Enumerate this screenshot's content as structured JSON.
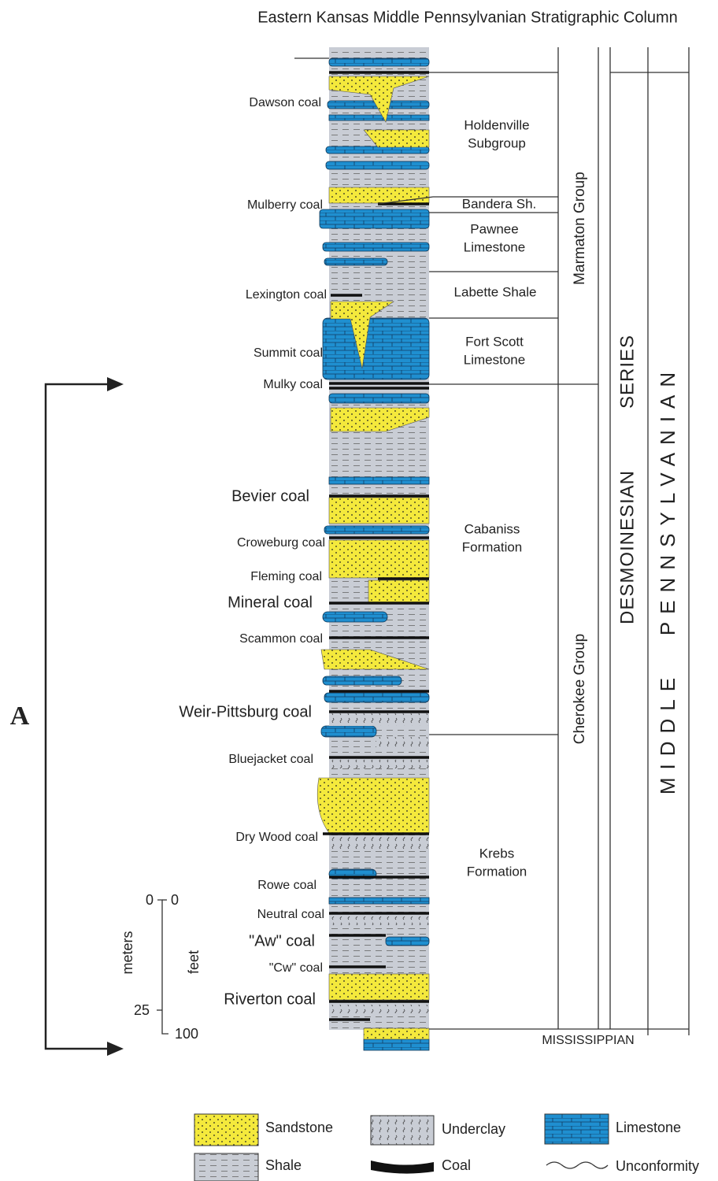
{
  "title": "Eastern Kansas Middle Pennsylvanian Stratigraphic Column",
  "coal_beds": [
    "Dawson coal",
    "Mulberry coal",
    "Lexington coal",
    "Summit coal",
    "Mulky coal",
    "Bevier coal",
    "Croweburg coal",
    "Fleming coal",
    "Mineral coal",
    "Scammon coal",
    "Weir-Pittsburg coal",
    "Bluejacket coal",
    "Dry Wood coal",
    "Rowe coal",
    "Neutral coal",
    "\"Aw\" coal",
    "\"Cw\" coal",
    "Riverton coal"
  ],
  "units": [
    [
      "Holdenville",
      "Subgroup"
    ],
    [
      "Bandera Sh."
    ],
    [
      "Pawnee",
      "Limestone"
    ],
    [
      "Labette Shale"
    ],
    [
      "Fort Scott",
      "Limestone"
    ],
    [
      "Cabaniss",
      "Formation"
    ],
    [
      "Krebs",
      "Formation"
    ]
  ],
  "groups": [
    "Marmaton Group",
    "Cherokee Group"
  ],
  "series": [
    "DESMOINESIAN",
    "SERIES"
  ],
  "system": [
    "MIDDLE",
    "PENNSYLVANIAN"
  ],
  "base": "MISSISSIPPIAN",
  "bracket_label": "A",
  "scale": {
    "left_unit": "meters",
    "right_unit": "feet",
    "left_ticks": [
      "0",
      "25"
    ],
    "right_ticks": [
      "0",
      "100"
    ]
  },
  "legend": [
    "Sandstone",
    "Underclay",
    "Limestone",
    "Shale",
    "Coal",
    "Unconformity"
  ]
}
